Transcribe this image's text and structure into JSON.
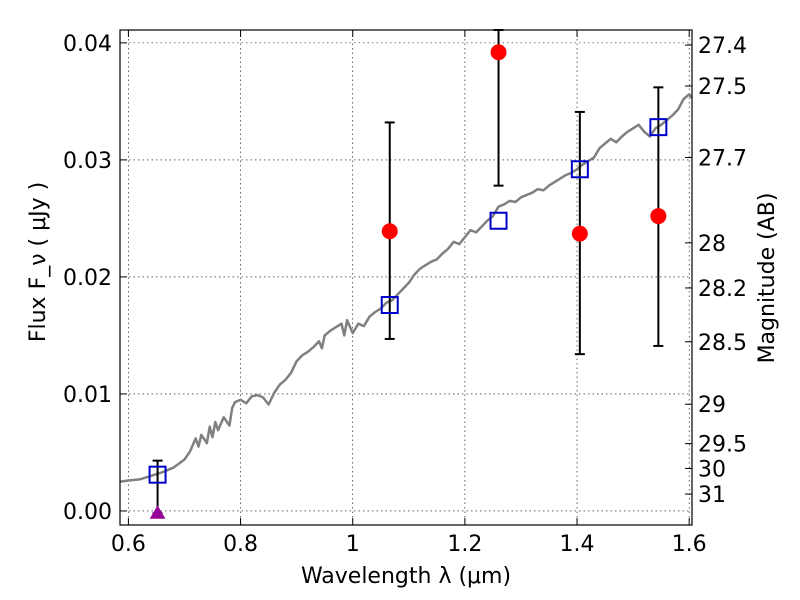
{
  "chart_data": {
    "type": "scatter",
    "xlabel": "Wavelength  λ (μm)",
    "ylabel": "Flux  F_ν  ( μJy )",
    "y2label": "Magnitude (AB)",
    "xlim": [
      0.585,
      1.605
    ],
    "ylim": [
      -0.0012,
      0.0411
    ],
    "grid": true,
    "x_ticks": [
      {
        "value": 0.6,
        "label": "0.6"
      },
      {
        "value": 0.8,
        "label": "0.8"
      },
      {
        "value": 1.0,
        "label": "1"
      },
      {
        "value": 1.2,
        "label": "1.2"
      },
      {
        "value": 1.4,
        "label": "1.4"
      },
      {
        "value": 1.6,
        "label": "1.6"
      }
    ],
    "y_ticks": [
      {
        "value": 0.0,
        "label": "0.00"
      },
      {
        "value": 0.01,
        "label": "0.01"
      },
      {
        "value": 0.02,
        "label": "0.02"
      },
      {
        "value": 0.03,
        "label": "0.03"
      },
      {
        "value": 0.04,
        "label": "0.04"
      }
    ],
    "y2_ticks": [
      {
        "mag": 27.4,
        "label": "27.4"
      },
      {
        "mag": 27.5,
        "label": "27.5"
      },
      {
        "mag": 27.7,
        "label": "27.7"
      },
      {
        "mag": 28.0,
        "label": "28"
      },
      {
        "mag": 28.2,
        "label": "28.2"
      },
      {
        "mag": 28.5,
        "label": "28.5"
      },
      {
        "mag": 29.0,
        "label": "29"
      },
      {
        "mag": 29.5,
        "label": "29.5"
      },
      {
        "mag": 30.0,
        "label": "30"
      },
      {
        "mag": 31.0,
        "label": "31"
      }
    ],
    "series": [
      {
        "type": "line",
        "color": "#808080",
        "points": [
          [
            0.585,
            0.0025
          ],
          [
            0.6,
            0.0026
          ],
          [
            0.62,
            0.0027
          ],
          [
            0.64,
            0.003
          ],
          [
            0.66,
            0.0033
          ],
          [
            0.68,
            0.0037
          ],
          [
            0.7,
            0.0044
          ],
          [
            0.71,
            0.0051
          ],
          [
            0.72,
            0.0062
          ],
          [
            0.725,
            0.0055
          ],
          [
            0.73,
            0.0065
          ],
          [
            0.74,
            0.0058
          ],
          [
            0.745,
            0.0072
          ],
          [
            0.75,
            0.0063
          ],
          [
            0.755,
            0.0076
          ],
          [
            0.76,
            0.0069
          ],
          [
            0.77,
            0.008
          ],
          [
            0.78,
            0.0073
          ],
          [
            0.785,
            0.0088
          ],
          [
            0.79,
            0.0093
          ],
          [
            0.8,
            0.0095
          ],
          [
            0.81,
            0.0092
          ],
          [
            0.82,
            0.0098
          ],
          [
            0.83,
            0.0099
          ],
          [
            0.84,
            0.0097
          ],
          [
            0.85,
            0.0091
          ],
          [
            0.86,
            0.0101
          ],
          [
            0.87,
            0.0108
          ],
          [
            0.88,
            0.0112
          ],
          [
            0.89,
            0.0118
          ],
          [
            0.9,
            0.0128
          ],
          [
            0.91,
            0.0133
          ],
          [
            0.92,
            0.0136
          ],
          [
            0.93,
            0.014
          ],
          [
            0.94,
            0.0145
          ],
          [
            0.945,
            0.0139
          ],
          [
            0.95,
            0.015
          ],
          [
            0.96,
            0.0154
          ],
          [
            0.97,
            0.0157
          ],
          [
            0.98,
            0.016
          ],
          [
            0.985,
            0.015
          ],
          [
            0.99,
            0.0163
          ],
          [
            1.0,
            0.0152
          ],
          [
            1.01,
            0.016
          ],
          [
            1.02,
            0.0158
          ],
          [
            1.03,
            0.0166
          ],
          [
            1.04,
            0.017
          ],
          [
            1.05,
            0.0173
          ],
          [
            1.06,
            0.0178
          ],
          [
            1.07,
            0.018
          ],
          [
            1.08,
            0.0185
          ],
          [
            1.09,
            0.019
          ],
          [
            1.1,
            0.0195
          ],
          [
            1.11,
            0.0202
          ],
          [
            1.12,
            0.0207
          ],
          [
            1.13,
            0.021
          ],
          [
            1.14,
            0.0213
          ],
          [
            1.15,
            0.0215
          ],
          [
            1.16,
            0.022
          ],
          [
            1.17,
            0.0224
          ],
          [
            1.18,
            0.023
          ],
          [
            1.19,
            0.0228
          ],
          [
            1.2,
            0.0234
          ],
          [
            1.21,
            0.024
          ],
          [
            1.22,
            0.0238
          ],
          [
            1.23,
            0.0243
          ],
          [
            1.24,
            0.0248
          ],
          [
            1.25,
            0.0252
          ],
          [
            1.26,
            0.026
          ],
          [
            1.27,
            0.0262
          ],
          [
            1.28,
            0.0265
          ],
          [
            1.29,
            0.0264
          ],
          [
            1.3,
            0.0268
          ],
          [
            1.31,
            0.027
          ],
          [
            1.32,
            0.0272
          ],
          [
            1.33,
            0.0275
          ],
          [
            1.34,
            0.0274
          ],
          [
            1.35,
            0.0278
          ],
          [
            1.36,
            0.0281
          ],
          [
            1.37,
            0.0284
          ],
          [
            1.38,
            0.0287
          ],
          [
            1.39,
            0.0289
          ],
          [
            1.4,
            0.0292
          ],
          [
            1.41,
            0.0296
          ],
          [
            1.42,
            0.0299
          ],
          [
            1.43,
            0.0302
          ],
          [
            1.44,
            0.031
          ],
          [
            1.45,
            0.0314
          ],
          [
            1.46,
            0.0318
          ],
          [
            1.47,
            0.0315
          ],
          [
            1.48,
            0.032
          ],
          [
            1.49,
            0.0324
          ],
          [
            1.5,
            0.0327
          ],
          [
            1.51,
            0.033
          ],
          [
            1.52,
            0.0324
          ],
          [
            1.53,
            0.032
          ],
          [
            1.54,
            0.0327
          ],
          [
            1.55,
            0.033
          ],
          [
            1.56,
            0.0334
          ],
          [
            1.57,
            0.0338
          ],
          [
            1.58,
            0.0343
          ],
          [
            1.59,
            0.0352
          ],
          [
            1.6,
            0.0356
          ],
          [
            1.605,
            0.0353
          ]
        ]
      },
      {
        "type": "points",
        "marker": "circle",
        "color": "#ff0000",
        "points": [
          {
            "x": 1.066,
            "y": 0.0239,
            "yerr_low": 0.0147,
            "yerr_high": 0.0332
          },
          {
            "x": 1.26,
            "y": 0.0392,
            "yerr_low": 0.0278,
            "yerr_high": 0.0411
          },
          {
            "x": 1.405,
            "y": 0.0237,
            "yerr_low": 0.0134,
            "yerr_high": 0.0341
          },
          {
            "x": 1.545,
            "y": 0.0252,
            "yerr_low": 0.0141,
            "yerr_high": 0.0362
          }
        ]
      },
      {
        "type": "points",
        "marker": "triangle-up",
        "color": "#990099",
        "points": [
          {
            "x": 0.652,
            "y": -0.0002,
            "yerr_low": -0.0002,
            "yerr_high": 0.0043
          }
        ]
      },
      {
        "type": "points",
        "marker": "square-open",
        "color": "#0000cc",
        "points": [
          {
            "x": 0.652,
            "y": 0.0031
          },
          {
            "x": 1.066,
            "y": 0.0176
          },
          {
            "x": 1.26,
            "y": 0.0248
          },
          {
            "x": 1.405,
            "y": 0.0292
          },
          {
            "x": 1.545,
            "y": 0.0328
          }
        ]
      }
    ]
  }
}
